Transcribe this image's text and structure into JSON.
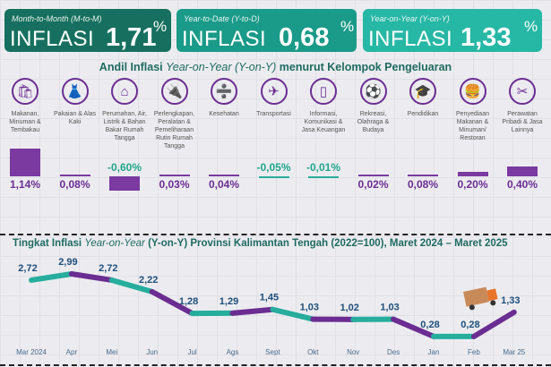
{
  "cards": [
    {
      "subtitle": "Month-to-Month (M-to-M)",
      "label": "INFLASI",
      "value": "1,71",
      "unit": "%",
      "color": "#17705f"
    },
    {
      "subtitle": "Year-to-Date (Y-to-D)",
      "label": "INFLASI",
      "value": "0,68",
      "unit": "%",
      "color": "#1a9a88"
    },
    {
      "subtitle": "Year-on-Year (Y-on-Y)",
      "label": "INFLASI",
      "value": "1,33",
      "unit": "%",
      "color": "#27b7a5"
    }
  ],
  "andil": {
    "title_pre": "Andil Inflasi ",
    "title_em": "Year-on-Year (Y-on-Y)",
    "title_post": " menurut Kelompok Pengeluaran",
    "groups": [
      {
        "icon": "grocery-bag-icon",
        "glyph": "🛍",
        "label": "Makanan, Minuman & Tembakau",
        "value": 1.14,
        "text": "1,14%"
      },
      {
        "icon": "dress-icon",
        "glyph": "👗",
        "label": "Pakaian & Alas Kaki",
        "value": 0.08,
        "text": "0,08%"
      },
      {
        "icon": "house-icon",
        "glyph": "⌂",
        "label": "Perumahan, Air, Listrik & Bahan Bakar Rumah Tangga",
        "value": -0.6,
        "text": "-0,60%"
      },
      {
        "icon": "plug-icon",
        "glyph": "🔌",
        "label": "Perlengkapan, Peralatan & Pemeliharaan Rutin Rumah Tangga",
        "value": 0.03,
        "text": "0,03%"
      },
      {
        "icon": "medical-kit-icon",
        "glyph": "➗",
        "label": "Kesehatan",
        "value": 0.04,
        "text": "0,04%"
      },
      {
        "icon": "airplane-icon",
        "glyph": "✈",
        "label": "Transportasi",
        "value": -0.05,
        "text": "-0,05%"
      },
      {
        "icon": "smartphone-icon",
        "glyph": "▯",
        "label": "Informasi, Komunikasi & Jasa Keuangan",
        "value": -0.01,
        "text": "-0,01%"
      },
      {
        "icon": "football-player-icon",
        "glyph": "⚽",
        "label": "Rekreasi, Olahraga & Budaya",
        "value": 0.02,
        "text": "0,02%"
      },
      {
        "icon": "graduation-cap-icon",
        "glyph": "🎓",
        "label": "Pendidikan",
        "value": 0.08,
        "text": "0,08%"
      },
      {
        "icon": "fast-food-icon",
        "glyph": "🍔",
        "label": "Penyediaan Makanan & Minuman/ Restoran",
        "value": 0.2,
        "text": "0,20%"
      },
      {
        "icon": "scissors-comb-icon",
        "glyph": "✂",
        "label": "Perawatan Pribadi & Jasa Lainnya",
        "value": 0.4,
        "text": "0,40%"
      }
    ]
  },
  "colors": {
    "purple": "#6b2d91",
    "teal": "#26ad9c",
    "negative_text": "#22a58a",
    "label_blue": "#1d4e7a"
  },
  "chart_data": {
    "type": "line",
    "title_pre": "Tingkat Inflasi ",
    "title_em": "Year-on-Year",
    "title_post": " (Y-on-Y) Provinsi Kalimantan Tengah (2022=100), Maret 2024 – Maret 2025",
    "categories": [
      "Mar 2024",
      "Apr",
      "Mei",
      "Jun",
      "Jul",
      "Ags",
      "Sept",
      "Okt",
      "Nov",
      "Des",
      "Jan",
      "Feb",
      "Mar 25"
    ],
    "values": [
      2.72,
      2.99,
      2.72,
      2.22,
      1.28,
      1.29,
      1.45,
      1.03,
      1.02,
      1.03,
      0.28,
      0.28,
      1.33
    ],
    "labels": [
      "2,72",
      "2,99",
      "2,72",
      "2,22",
      "1,28",
      "1,29",
      "1,45",
      "1,03",
      "1,02",
      "1,03",
      "0,28",
      "0,28",
      "1,33"
    ],
    "ylim": [
      0.28,
      2.99
    ]
  }
}
